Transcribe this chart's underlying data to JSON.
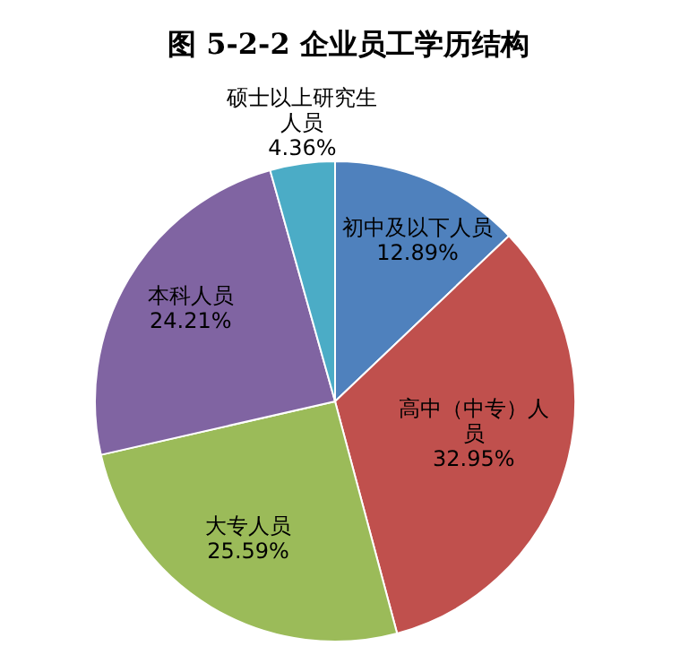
{
  "chart_data": {
    "type": "pie",
    "title": "图 5-2-2 企业员工学历结构",
    "categories": [
      "初中及以下人员",
      "高中（中专）人员",
      "大专人员",
      "本科人员",
      "硕士以上研究生人员"
    ],
    "values": [
      12.89,
      32.95,
      25.59,
      24.21,
      4.36
    ],
    "colors": [
      "#4f81bd",
      "#c0504d",
      "#9bbb59",
      "#8064a2",
      "#4bacc6"
    ],
    "value_labels": [
      "12.89%",
      "32.95%",
      "25.59%",
      "24.21%",
      "4.36%"
    ]
  }
}
